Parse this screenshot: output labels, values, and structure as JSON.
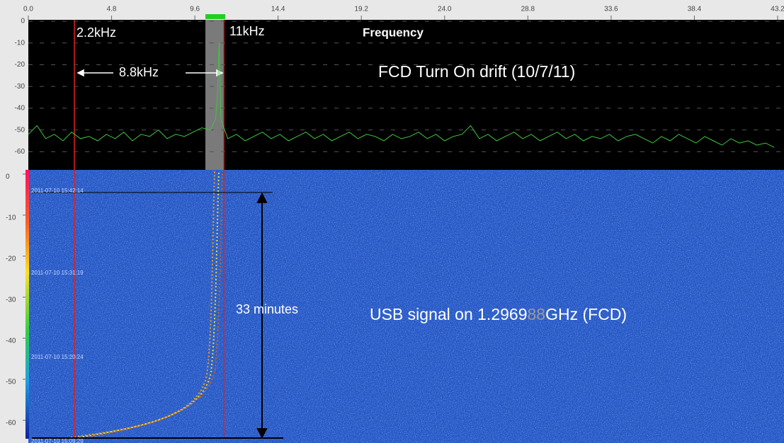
{
  "chart_data": [
    {
      "type": "line",
      "title": "FCD Turn On drift  (10/7/11)",
      "annotations": [
        "2.2kHz",
        "11kHz",
        "Frequency",
        "8.8kHz"
      ],
      "x": [
        0,
        0.5,
        1,
        1.5,
        2,
        2.5,
        3,
        3.5,
        4,
        4.5,
        5,
        5.5,
        6,
        6.5,
        7,
        7.5,
        8,
        8.5,
        9,
        9.5,
        10,
        10.5,
        10.8,
        10.9,
        11,
        11.1,
        11.5,
        12,
        12.5,
        13,
        13.5,
        14,
        14.5,
        15,
        15.5,
        16,
        16.5,
        17,
        17.5,
        18,
        18.5,
        19,
        19.5,
        20,
        20.5,
        21,
        21.5,
        22,
        22.5,
        23,
        23.5,
        24,
        24.5,
        25,
        25.5,
        26,
        26.5,
        27,
        27.5,
        28,
        28.5,
        29,
        29.5,
        30,
        30.5,
        31,
        31.5,
        32,
        32.5,
        33,
        33.5,
        34,
        34.5,
        35,
        35.5,
        36,
        36.5,
        37,
        37.5,
        38,
        38.5,
        39,
        39.5,
        40,
        40.5,
        41,
        41.5,
        42,
        42.5,
        43
      ],
      "series": [
        {
          "color": "#3ec83e",
          "values": [
            -52,
            -48,
            -54,
            -52,
            -55,
            -51,
            -54,
            -53,
            -55,
            -52,
            -54,
            -51,
            -55,
            -52,
            -53,
            -50,
            -54,
            -52,
            -53,
            -51,
            -49,
            -50,
            -45,
            -35,
            -10,
            -45,
            -54,
            -52,
            -55,
            -53,
            -51,
            -54,
            -52,
            -55,
            -53,
            -51,
            -54,
            -52,
            -55,
            -53,
            -51,
            -54,
            -52,
            -53,
            -55,
            -52,
            -54,
            -53,
            -51,
            -54,
            -52,
            -55,
            -53,
            -52,
            -48,
            -54,
            -52,
            -55,
            -53,
            -51,
            -54,
            -52,
            -55,
            -53,
            -51,
            -54,
            -52,
            -55,
            -53,
            -54,
            -52,
            -55,
            -53,
            -52,
            -54,
            -56,
            -53,
            -55,
            -52,
            -54,
            -56,
            -53,
            -55,
            -57,
            -54,
            -56,
            -55,
            -57,
            -56,
            -58
          ]
        }
      ],
      "xlim": [
        0,
        43.2
      ],
      "xticks": [
        {
          "value": 0,
          "label": "0.0"
        },
        4.8,
        9.6,
        14.4,
        19.2,
        {
          "value": 24,
          "label": "24.0"
        },
        28.8,
        33.6,
        38.4,
        43.2
      ],
      "ylim": [
        -69,
        0
      ],
      "yticks": [
        0,
        -10,
        -20,
        -30,
        -40,
        -50,
        -60
      ],
      "grid": true
    },
    {
      "type": "waterfall",
      "annotations": [
        "33 minutes"
      ],
      "annotation_parts": [
        "USB signal on 1.2969",
        "88",
        "GHz  (FCD)"
      ],
      "ylim": [
        -64.5,
        0
      ],
      "yticks": [
        0,
        -10,
        -20,
        -30,
        -40,
        -50,
        -60
      ],
      "time_labels": [
        "2011-07-10 15:42:14",
        "2011-07-10 15:31:19",
        "2011-07-10 15:20:24",
        "2011-07-10 15:09:29"
      ]
    }
  ]
}
